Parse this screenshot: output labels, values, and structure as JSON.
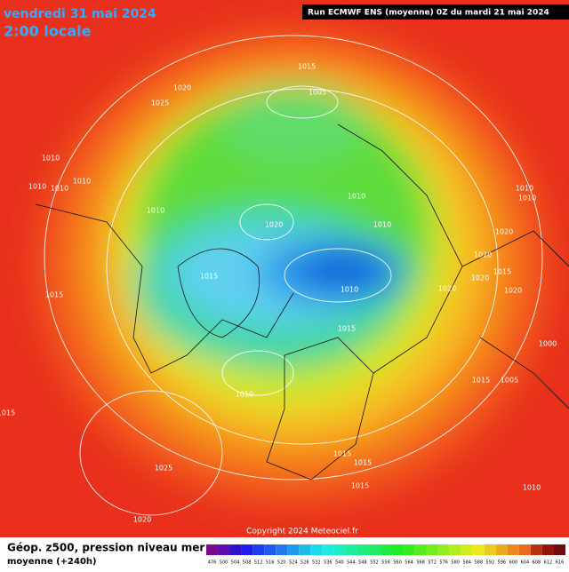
{
  "header": {
    "date": "vendredi 31 mai 2024",
    "time": "2:00 locale",
    "run": "Run ECMWF ENS (moyenne) 0Z du mardi 21 mai 2024"
  },
  "map": {
    "isobar_labels": [
      "1015",
      "1005",
      "1020",
      "1025",
      "1010",
      "1010",
      "1010",
      "1010",
      "1010",
      "1010",
      "1010",
      "1020",
      "1020",
      "1020",
      "1020",
      "1020",
      "1020",
      "1015",
      "1015",
      "1015",
      "1015",
      "1010",
      "1010",
      "1010",
      "1015",
      "1000",
      "1005",
      "1025",
      "1020",
      "1015",
      "1015",
      "1015",
      "1015",
      "1010",
      "1010"
    ],
    "copyright": "Copyright 2024 Meteociel.fr"
  },
  "footer": {
    "title": "Géop. z500, pression niveau mer",
    "subtitle": "moyenne  (+240h)",
    "scale_labels": [
      "476",
      "500",
      "504",
      "508",
      "512",
      "516",
      "520",
      "524",
      "528",
      "532",
      "536",
      "540",
      "544",
      "548",
      "552",
      "556",
      "560",
      "564",
      "568",
      "572",
      "576",
      "580",
      "584",
      "588",
      "592",
      "596",
      "600",
      "604",
      "608",
      "612",
      "616"
    ]
  }
}
